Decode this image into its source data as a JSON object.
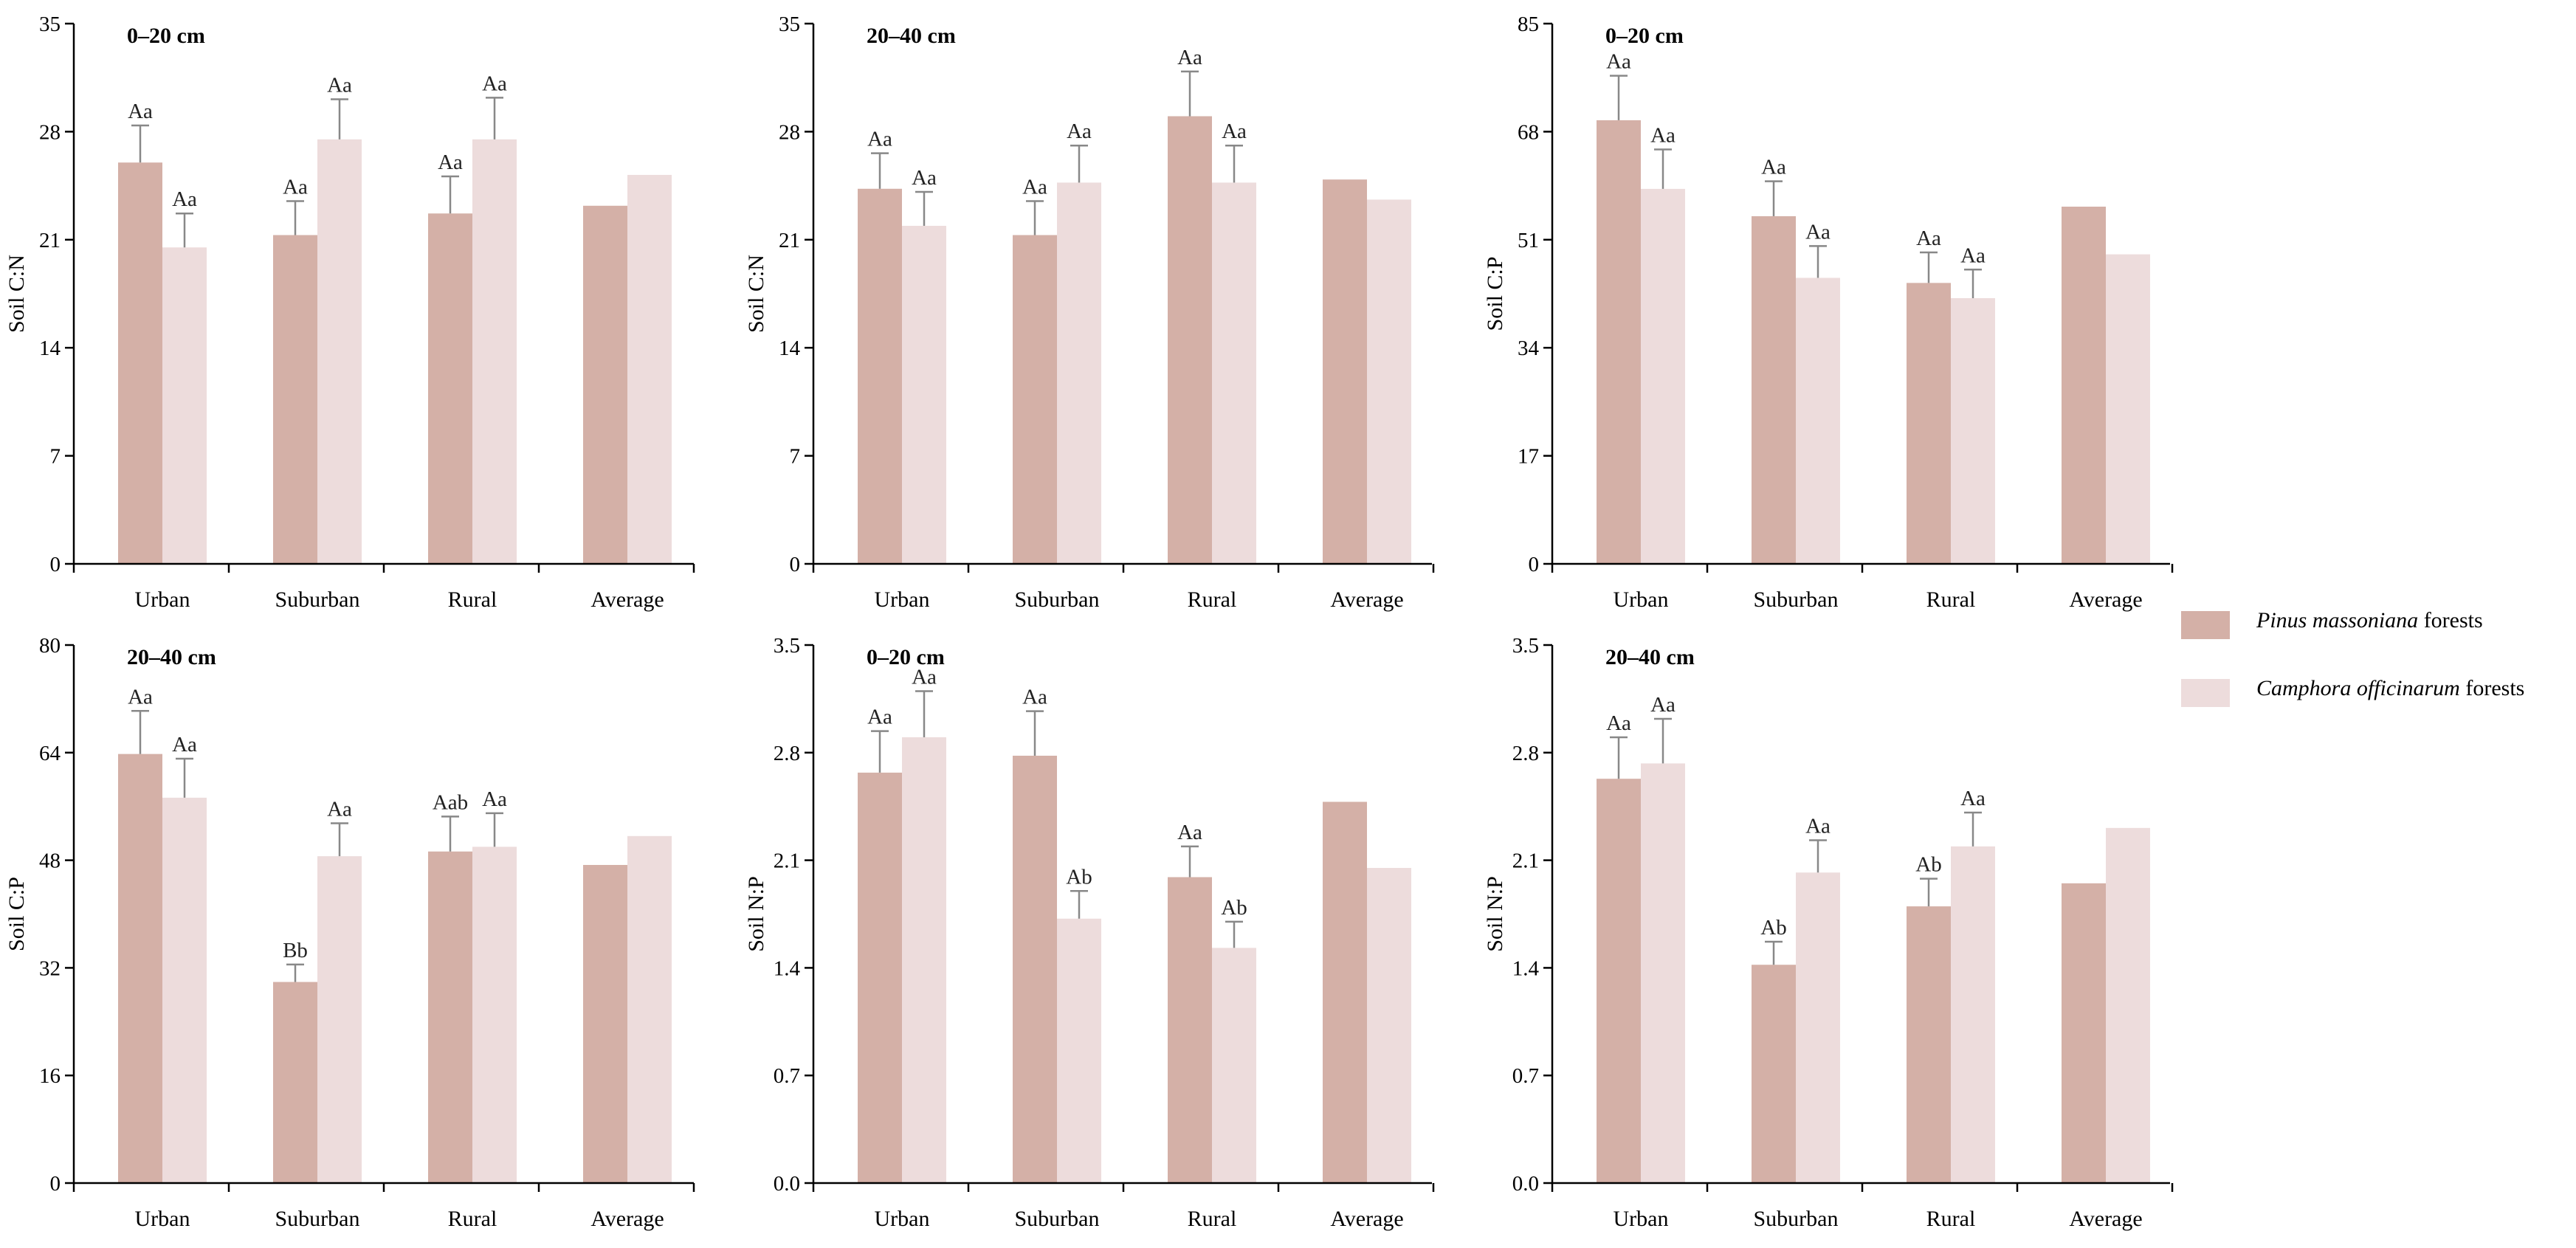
{
  "legend": {
    "items": [
      {
        "species": "Pinus massoniana",
        "suffix": " forests",
        "color": "#d4b0a7"
      },
      {
        "species": "Camphora officinarum",
        "suffix": " forests",
        "color": "#eddcdc"
      }
    ]
  },
  "chart_data": [
    {
      "type": "bar",
      "title": "0–20 cm",
      "ylabel": "Soil C:N",
      "ylim": [
        0,
        35
      ],
      "yticks": [
        "0",
        "7",
        "14",
        "21",
        "28",
        "35"
      ],
      "categories": [
        "Urban",
        "Suburban",
        "Rural",
        "Average"
      ],
      "series": [
        {
          "name": "Pinus massoniana forests",
          "color": "#d4b0a7",
          "values": [
            26.0,
            21.3,
            22.7,
            23.2
          ],
          "errors": [
            2.4,
            2.2,
            2.4,
            0
          ],
          "labels": [
            "Aa",
            "Aa",
            "Aa",
            ""
          ]
        },
        {
          "name": "Camphora officinarum forests",
          "color": "#eddcdc",
          "values": [
            20.5,
            27.5,
            27.5,
            25.2
          ],
          "errors": [
            2.2,
            2.6,
            2.7,
            0
          ],
          "labels": [
            "Aa",
            "Aa",
            "Aa",
            ""
          ]
        }
      ]
    },
    {
      "type": "bar",
      "title": "20–40 cm",
      "ylabel": "Soil C:N",
      "ylim": [
        0,
        35
      ],
      "yticks": [
        "0",
        "7",
        "14",
        "21",
        "28",
        "35"
      ],
      "categories": [
        "Urban",
        "Suburban",
        "Rural",
        "Average"
      ],
      "series": [
        {
          "name": "Pinus massoniana forests",
          "color": "#d4b0a7",
          "values": [
            24.3,
            21.3,
            29.0,
            24.9
          ],
          "errors": [
            2.3,
            2.2,
            2.9,
            0
          ],
          "labels": [
            "Aa",
            "Aa",
            "Aa",
            ""
          ]
        },
        {
          "name": "Camphora officinarum forests",
          "color": "#eddcdc",
          "values": [
            21.9,
            24.7,
            24.7,
            23.6
          ],
          "errors": [
            2.2,
            2.4,
            2.4,
            0
          ],
          "labels": [
            "Aa",
            "Aa",
            "Aa",
            ""
          ]
        }
      ]
    },
    {
      "type": "bar",
      "title": "0–20 cm",
      "ylabel": "Soil C:P",
      "ylim": [
        0,
        85
      ],
      "yticks": [
        "0",
        "17",
        "34",
        "51",
        "68",
        "85"
      ],
      "categories": [
        "Urban",
        "Suburban",
        "Rural",
        "Average"
      ],
      "series": [
        {
          "name": "Pinus massoniana forests",
          "color": "#d4b0a7",
          "values": [
            69.8,
            54.7,
            44.2,
            56.2
          ],
          "errors": [
            7.0,
            5.5,
            4.8,
            0
          ],
          "labels": [
            "Aa",
            "Aa",
            "Aa",
            ""
          ]
        },
        {
          "name": "Camphora officinarum forests",
          "color": "#eddcdc",
          "values": [
            59.0,
            45.0,
            41.8,
            48.7
          ],
          "errors": [
            6.2,
            5.0,
            4.5,
            0
          ],
          "labels": [
            "Aa",
            "Aa",
            "Aa",
            ""
          ]
        }
      ]
    },
    {
      "type": "bar",
      "title": "20–40 cm",
      "ylabel": "Soil C:P",
      "ylim": [
        0,
        80
      ],
      "yticks": [
        "0",
        "16",
        "32",
        "48",
        "64",
        "80"
      ],
      "categories": [
        "Urban",
        "Suburban",
        "Rural",
        "Average"
      ],
      "series": [
        {
          "name": "Pinus massoniana forests",
          "color": "#d4b0a7",
          "values": [
            63.8,
            29.9,
            49.3,
            47.3
          ],
          "errors": [
            6.4,
            2.6,
            5.2,
            0
          ],
          "labels": [
            "Aa",
            "Bb",
            "Aab",
            ""
          ]
        },
        {
          "name": "Camphora officinarum forests",
          "color": "#eddcdc",
          "values": [
            57.3,
            48.6,
            50.0,
            51.6
          ],
          "errors": [
            5.8,
            4.9,
            5.0,
            0
          ],
          "labels": [
            "Aa",
            "Aa",
            "Aa",
            ""
          ]
        }
      ]
    },
    {
      "type": "bar",
      "title": "0–20 cm",
      "ylabel": "Soil N:P",
      "ylim": [
        0,
        3.5
      ],
      "yticks": [
        "0.0",
        "0.7",
        "1.4",
        "2.1",
        "2.8",
        "3.5"
      ],
      "categories": [
        "Urban",
        "Suburban",
        "Rural",
        "Average"
      ],
      "series": [
        {
          "name": "Pinus massoniana forests",
          "color": "#d4b0a7",
          "values": [
            2.67,
            2.78,
            1.99,
            2.48
          ],
          "errors": [
            0.27,
            0.29,
            0.2,
            0
          ],
          "labels": [
            "Aa",
            "Aa",
            "Aa",
            ""
          ]
        },
        {
          "name": "Camphora officinarum forests",
          "color": "#eddcdc",
          "values": [
            2.9,
            1.72,
            1.53,
            2.05
          ],
          "errors": [
            0.3,
            0.18,
            0.17,
            0
          ],
          "labels": [
            "Aa",
            "Ab",
            "Ab",
            ""
          ]
        }
      ]
    },
    {
      "type": "bar",
      "title": "20–40 cm",
      "ylabel": "Soil N:P",
      "ylim": [
        0,
        3.5
      ],
      "yticks": [
        "0.0",
        "0.7",
        "1.4",
        "2.1",
        "2.8",
        "3.5"
      ],
      "categories": [
        "Urban",
        "Suburban",
        "Rural",
        "Average"
      ],
      "series": [
        {
          "name": "Pinus massoniana forests",
          "color": "#d4b0a7",
          "values": [
            2.63,
            1.42,
            1.8,
            1.95
          ],
          "errors": [
            0.27,
            0.15,
            0.18,
            0
          ],
          "labels": [
            "Aa",
            "Ab",
            "Ab",
            ""
          ]
        },
        {
          "name": "Camphora officinarum forests",
          "color": "#eddcdc",
          "values": [
            2.73,
            2.02,
            2.19,
            2.31
          ],
          "errors": [
            0.29,
            0.21,
            0.22,
            0
          ],
          "labels": [
            "Aa",
            "Aa",
            "Aa",
            ""
          ]
        }
      ]
    }
  ]
}
